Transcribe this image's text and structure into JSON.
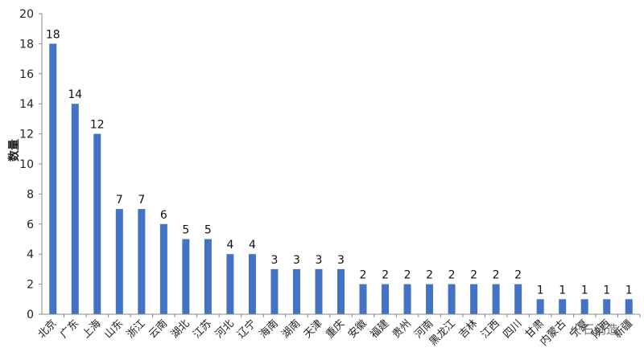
{
  "chart_data": {
    "type": "bar",
    "title": "",
    "xlabel": "",
    "ylabel": "数量",
    "ylim": [
      0,
      20
    ],
    "yticks": [
      0,
      2,
      4,
      6,
      8,
      10,
      12,
      14,
      16,
      18,
      20
    ],
    "grid": false,
    "legend": "none",
    "bar_color": "#4472C4",
    "categories": [
      "北京",
      "广东",
      "上海",
      "山东",
      "浙江",
      "云南",
      "湖北",
      "江苏",
      "河北",
      "辽宁",
      "海南",
      "湖南",
      "天津",
      "重庆",
      "安徽",
      "福建",
      "贵州",
      "河南",
      "黑龙江",
      "吉林",
      "江西",
      "四川",
      "甘肃",
      "内蒙古",
      "宁夏",
      "陕西",
      "新疆"
    ],
    "values": [
      18,
      14,
      12,
      7,
      7,
      6,
      5,
      5,
      4,
      4,
      3,
      3,
      3,
      3,
      2,
      2,
      2,
      2,
      2,
      2,
      2,
      2,
      1,
      1,
      1,
      1,
      1
    ]
  },
  "watermark": "火石创造"
}
